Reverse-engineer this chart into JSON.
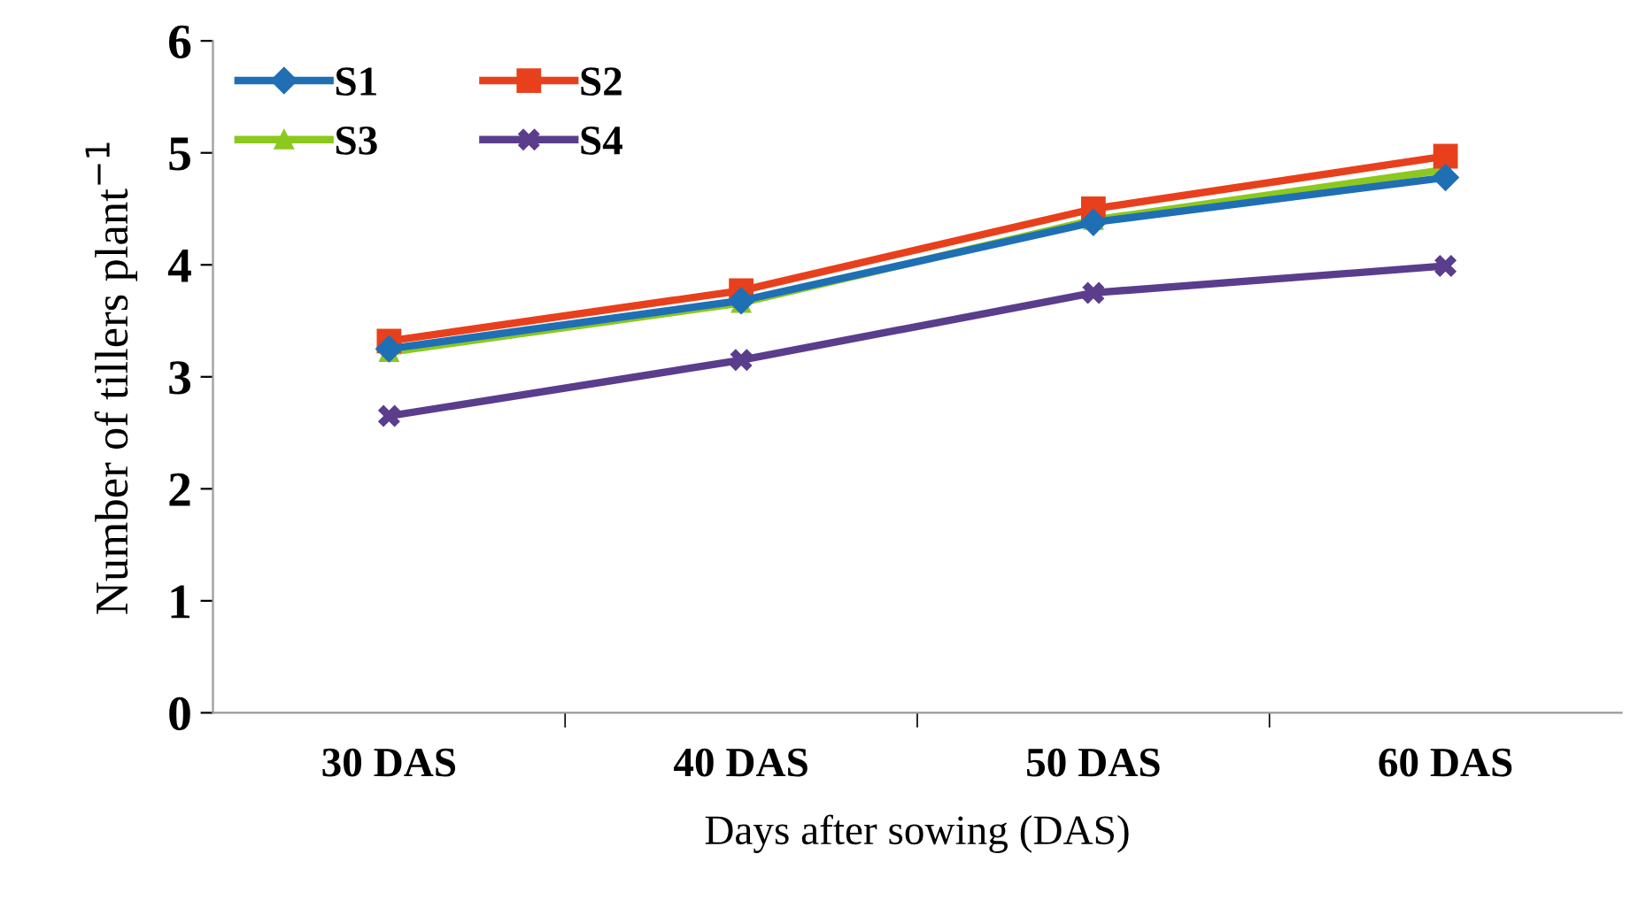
{
  "chart_data": {
    "type": "line",
    "xlabel": "Days after sowing (DAS)",
    "ylabel": "Number of tillers plant$^{−1}$",
    "categories": [
      "30 DAS",
      "40 DAS",
      "50 DAS",
      "60 DAS"
    ],
    "series": [
      {
        "name": "S1",
        "color": "#1f6fb5",
        "marker": "diamond",
        "values": [
          3.25,
          3.68,
          4.38,
          4.78
        ]
      },
      {
        "name": "S2",
        "color": "#e8401c",
        "marker": "square",
        "values": [
          3.32,
          3.77,
          4.5,
          4.97
        ]
      },
      {
        "name": "S3",
        "color": "#8cc81e",
        "marker": "triangle",
        "values": [
          3.22,
          3.66,
          4.4,
          4.85
        ]
      },
      {
        "name": "S4",
        "color": "#5a3d8c",
        "marker": "cross",
        "values": [
          2.65,
          3.15,
          3.75,
          3.99
        ]
      }
    ],
    "ylim": [
      0,
      6
    ],
    "yticks": [
      0,
      1,
      2,
      3,
      4,
      5,
      6
    ],
    "grid": false,
    "legend": "top left",
    "line_style": "solid"
  }
}
